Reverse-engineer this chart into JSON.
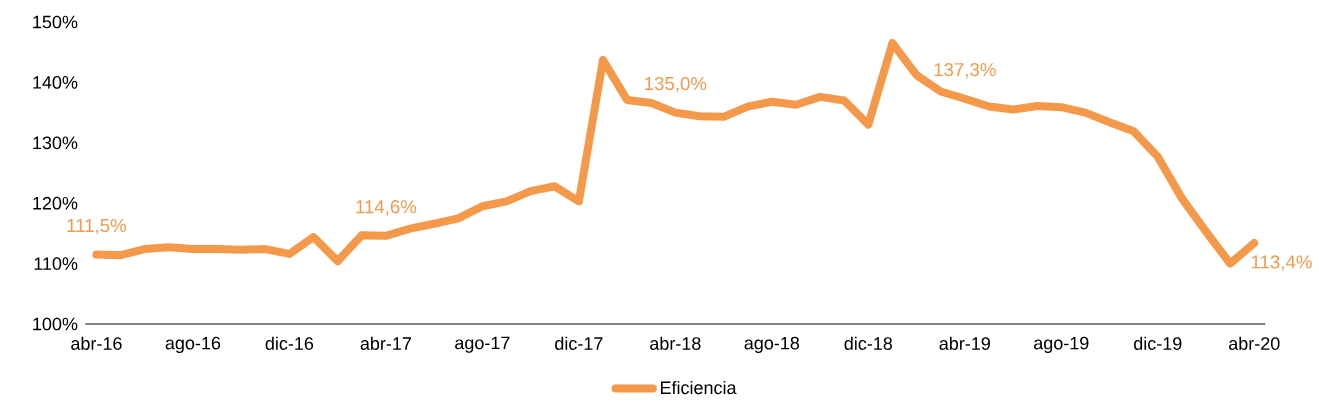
{
  "chart_data": {
    "type": "line",
    "categories": [
      "abr-16",
      null,
      null,
      null,
      "ago-16",
      null,
      null,
      null,
      "dic-16",
      null,
      null,
      null,
      "abr-17",
      null,
      null,
      null,
      "ago-17",
      null,
      null,
      null,
      "dic-17",
      null,
      null,
      null,
      "abr-18",
      null,
      null,
      null,
      "ago-18",
      null,
      null,
      null,
      "dic-18",
      null,
      null,
      null,
      "abr-19",
      null,
      null,
      null,
      "ago-19",
      null,
      null,
      null,
      "dic-19",
      null,
      null,
      null,
      "abr-20"
    ],
    "series": [
      {
        "name": "Eficiencia",
        "color": "#f4984a",
        "values": [
          111.5,
          111.4,
          112.4,
          112.7,
          112.4,
          112.4,
          112.3,
          112.4,
          111.6,
          114.4,
          110.4,
          114.7,
          114.6,
          115.8,
          116.6,
          117.5,
          119.5,
          120.3,
          122.0,
          122.8,
          120.3,
          143.7,
          137.1,
          136.6,
          135.0,
          134.4,
          134.3,
          136.0,
          136.8,
          136.3,
          137.6,
          137.0,
          133.0,
          146.5,
          141.2,
          138.5,
          137.3,
          136.0,
          135.5,
          136.1,
          135.9,
          135.0,
          133.4,
          131.9,
          127.7,
          120.8,
          115.3,
          110.0,
          113.4
        ],
        "value_labels": [
          "111,5%",
          null,
          null,
          null,
          null,
          null,
          null,
          null,
          null,
          null,
          null,
          null,
          "114,6%",
          null,
          null,
          null,
          null,
          null,
          null,
          null,
          null,
          null,
          null,
          null,
          "135,0%",
          null,
          null,
          null,
          null,
          null,
          null,
          null,
          null,
          null,
          null,
          null,
          "137,3%",
          null,
          null,
          null,
          null,
          null,
          null,
          null,
          null,
          null,
          null,
          null,
          "113,4%"
        ]
      }
    ],
    "ylim": [
      100,
      150
    ],
    "yticks": [
      {
        "value": 100,
        "label": "100%"
      },
      {
        "value": 110,
        "label": "110%"
      },
      {
        "value": 120,
        "label": "120%"
      },
      {
        "value": 130,
        "label": "130%"
      },
      {
        "value": 140,
        "label": "140%"
      },
      {
        "value": 150,
        "label": "150%"
      }
    ],
    "grid": false,
    "legend": "bottom",
    "marker": "none",
    "line_style": "solid"
  }
}
